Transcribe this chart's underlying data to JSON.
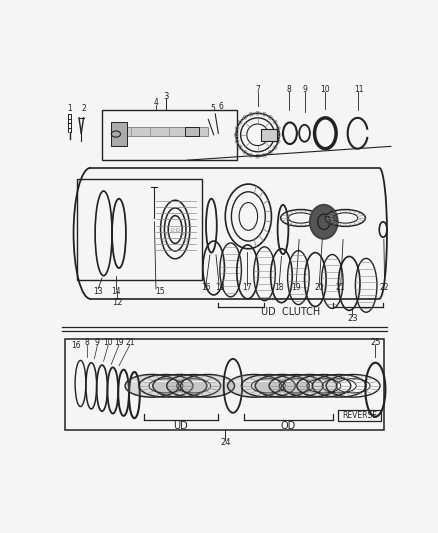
{
  "bg_color": "#f5f5f5",
  "fig_width": 4.38,
  "fig_height": 5.33,
  "dpi": 100,
  "lc": "#222222",
  "gray": "#888888",
  "lgray": "#bbbbbb",
  "labels": {
    "1": "1",
    "2": "2",
    "3": "3",
    "4": "4",
    "5": "5",
    "6": "6",
    "7": "7",
    "8": "8",
    "9": "9",
    "10": "10",
    "11": "11",
    "12": "12",
    "13": "13",
    "14": "14",
    "15": "15",
    "16": "16",
    "17": "17",
    "18": "18",
    "19": "19",
    "20": "20",
    "21": "21",
    "22": "22",
    "23": "23",
    "24": "24",
    "25": "25",
    "ud_clutch": "UD  CLUTCH",
    "ud": "UD",
    "od": "OD",
    "reverse": "REVERSE"
  }
}
